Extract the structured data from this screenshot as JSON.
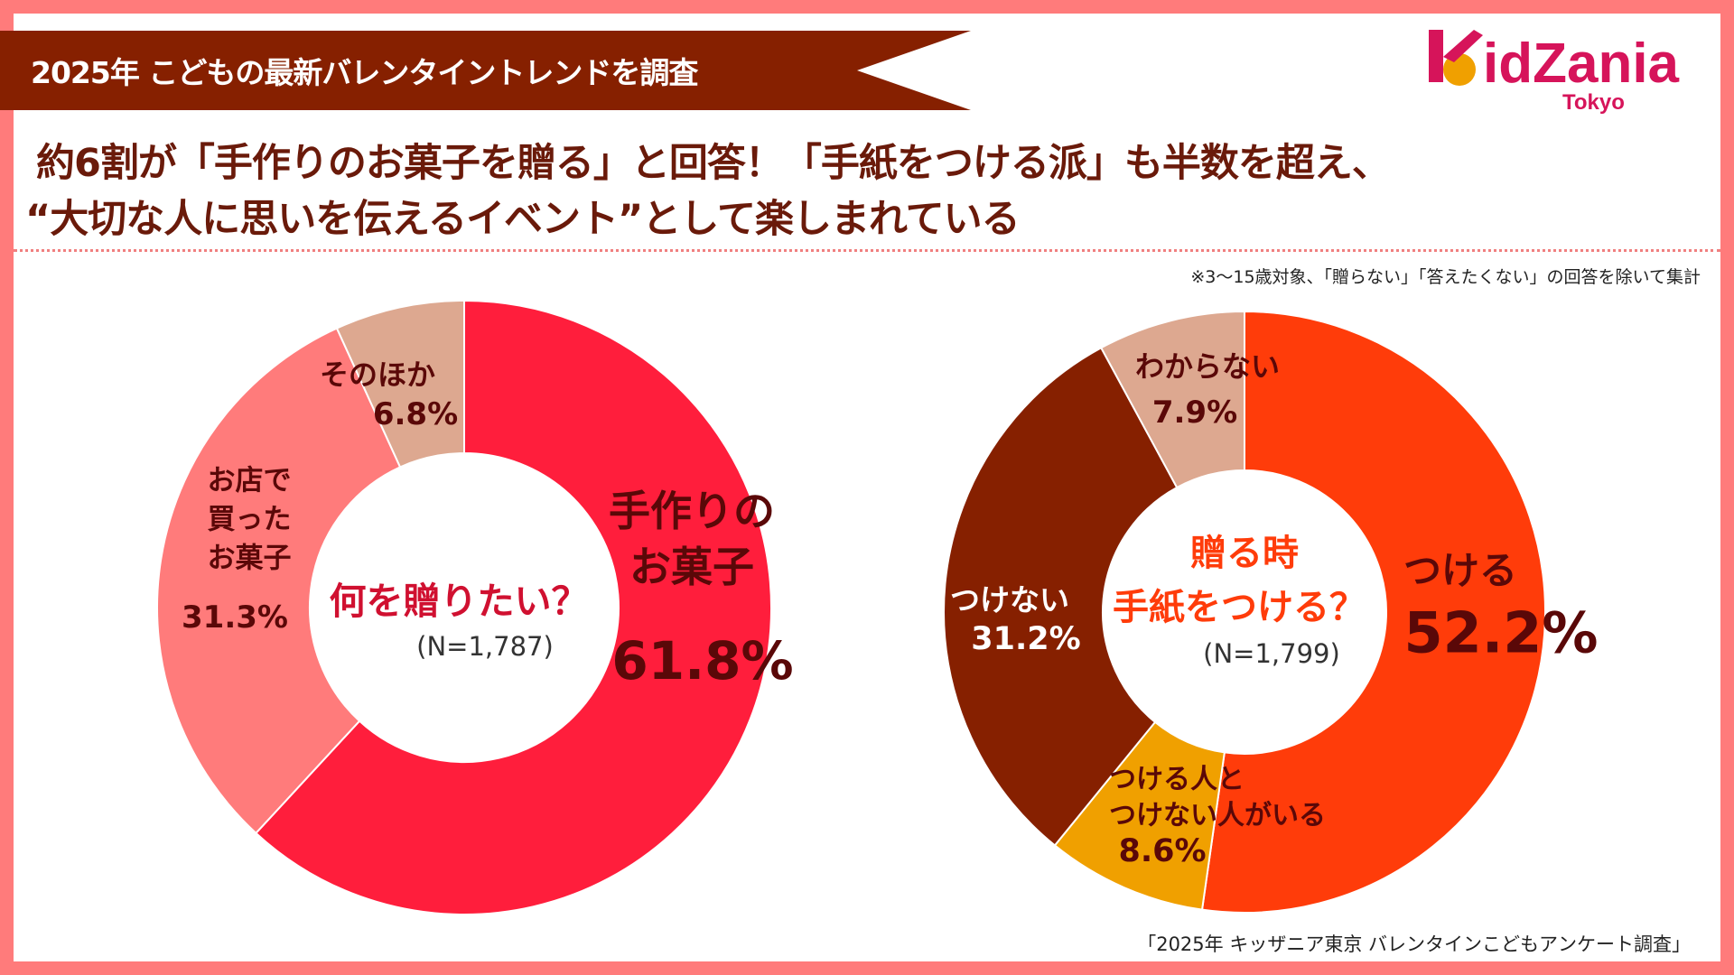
{
  "banner": {
    "text": "2025年 こどもの最新バレンタイントレンドを調査",
    "color": "#862000"
  },
  "headline": {
    "line1": "約6割が「手作りのお菓子を贈る」と回答！「手紙をつける派」も半数を超え、",
    "line2": "“大切な人に思いを伝えるイベント”として楽しまれている"
  },
  "logo": {
    "brand": "KidZania",
    "sub": "Tokyo"
  },
  "note": "※3〜15歳対象、「贈らない」「答えたくない」の回答を除いて集計",
  "footer": "「2025年 キッザニア東京 バレンタインこどもアンケート調査」",
  "chart_data": [
    {
      "type": "pie",
      "donut": true,
      "title": "何を贈りたい？",
      "subtitle": "(N=1,787)",
      "categories": [
        "手作りのお菓子",
        "お店で買ったお菓子",
        "そのほか"
      ],
      "values": [
        61.8,
        31.3,
        6.8
      ],
      "value_labels": [
        "61.8%",
        "31.3%",
        "6.8%"
      ],
      "colors": [
        "#FF1E3C",
        "#FF7B7B",
        "#DDA890"
      ],
      "label_lines": [
        [
          "手作りの",
          "お菓子"
        ],
        [
          "お店で",
          "買った",
          "お菓子"
        ],
        [
          "そのほか"
        ]
      ]
    },
    {
      "type": "pie",
      "donut": true,
      "title_lines": [
        "贈る時",
        "手紙をつける？"
      ],
      "subtitle": "(N=1,799)",
      "categories": [
        "つける",
        "つける人とつけない人がいる",
        "つけない",
        "わからない"
      ],
      "values": [
        52.2,
        8.6,
        31.2,
        7.9
      ],
      "value_labels": [
        "52.2%",
        "8.6%",
        "31.2%",
        "7.9%"
      ],
      "colors": [
        "#FF3C0A",
        "#F0A000",
        "#862000",
        "#DDA890"
      ],
      "label_lines": [
        [
          "つける"
        ],
        [
          "つける人と",
          "つけない人がいる"
        ],
        [
          "つけない"
        ],
        [
          "わからない"
        ]
      ]
    }
  ]
}
